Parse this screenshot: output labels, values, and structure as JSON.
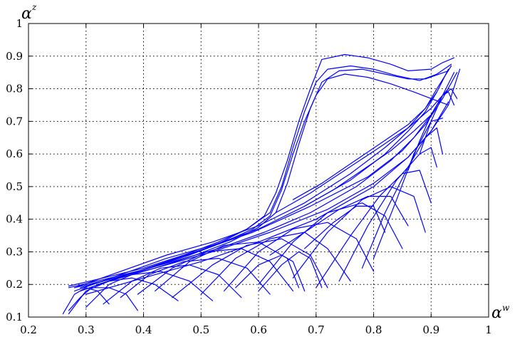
{
  "chart_data": {
    "type": "line",
    "title": "",
    "xlabel": {
      "symbol": "α",
      "superscript": "w"
    },
    "ylabel": {
      "symbol": "α",
      "superscript": "z"
    },
    "xlim": [
      0.2,
      1
    ],
    "ylim": [
      0.1,
      1
    ],
    "xticks": [
      "0.2",
      "0.3",
      "0.4",
      "0.5",
      "0.6",
      "0.7",
      "0.8",
      "0.9",
      "1"
    ],
    "yticks": [
      "0.1",
      "0.2",
      "0.3",
      "0.4",
      "0.5",
      "0.6",
      "0.7",
      "0.8",
      "0.9",
      "1"
    ],
    "grid": true,
    "color": "#0000ff",
    "series": [
      {
        "x": [
          0.27,
          0.33,
          0.4,
          0.47,
          0.53,
          0.58,
          0.61,
          0.63,
          0.65,
          0.67,
          0.69,
          0.71,
          0.75,
          0.79,
          0.83,
          0.86,
          0.9,
          0.92,
          0.94
        ],
        "y": [
          0.195,
          0.22,
          0.25,
          0.29,
          0.33,
          0.37,
          0.41,
          0.48,
          0.58,
          0.7,
          0.8,
          0.89,
          0.905,
          0.895,
          0.875,
          0.855,
          0.86,
          0.88,
          0.895
        ]
      },
      {
        "x": [
          0.27,
          0.33,
          0.4,
          0.47,
          0.53,
          0.58,
          0.62,
          0.64,
          0.66,
          0.68,
          0.7,
          0.72,
          0.76,
          0.8,
          0.84,
          0.88,
          0.91,
          0.935
        ],
        "y": [
          0.19,
          0.215,
          0.245,
          0.285,
          0.325,
          0.37,
          0.42,
          0.5,
          0.62,
          0.73,
          0.82,
          0.86,
          0.87,
          0.86,
          0.84,
          0.825,
          0.845,
          0.875
        ]
      },
      {
        "x": [
          0.28,
          0.34,
          0.41,
          0.48,
          0.54,
          0.59,
          0.62,
          0.64,
          0.66,
          0.68,
          0.7,
          0.72,
          0.75,
          0.79,
          0.83,
          0.87,
          0.9,
          0.93
        ],
        "y": [
          0.19,
          0.215,
          0.25,
          0.29,
          0.33,
          0.37,
          0.41,
          0.49,
          0.6,
          0.7,
          0.78,
          0.83,
          0.845,
          0.835,
          0.815,
          0.79,
          0.77,
          0.75
        ]
      },
      {
        "x": [
          0.29,
          0.35,
          0.42,
          0.49,
          0.55,
          0.6,
          0.63,
          0.65,
          0.67,
          0.69,
          0.71,
          0.74,
          0.78,
          0.82,
          0.86,
          0.89,
          0.93
        ],
        "y": [
          0.19,
          0.22,
          0.25,
          0.29,
          0.33,
          0.375,
          0.42,
          0.51,
          0.63,
          0.74,
          0.82,
          0.855,
          0.86,
          0.845,
          0.83,
          0.83,
          0.855
        ]
      },
      {
        "x": [
          0.28,
          0.36,
          0.44,
          0.52,
          0.6,
          0.68,
          0.76,
          0.82,
          0.86,
          0.89,
          0.91,
          0.93
        ],
        "y": [
          0.18,
          0.23,
          0.28,
          0.32,
          0.37,
          0.44,
          0.52,
          0.6,
          0.67,
          0.73,
          0.79,
          0.86
        ]
      },
      {
        "x": [
          0.28,
          0.36,
          0.44,
          0.52,
          0.6,
          0.68,
          0.76,
          0.82,
          0.86,
          0.89,
          0.91,
          0.935
        ],
        "y": [
          0.19,
          0.24,
          0.29,
          0.33,
          0.38,
          0.45,
          0.54,
          0.62,
          0.68,
          0.74,
          0.8,
          0.87
        ]
      },
      {
        "x": [
          0.29,
          0.37,
          0.45,
          0.53,
          0.61,
          0.69,
          0.77,
          0.83,
          0.87,
          0.9,
          0.92,
          0.94
        ],
        "y": [
          0.18,
          0.23,
          0.27,
          0.31,
          0.36,
          0.42,
          0.5,
          0.58,
          0.65,
          0.72,
          0.78,
          0.85
        ]
      },
      {
        "x": [
          0.3,
          0.4,
          0.5,
          0.6,
          0.7,
          0.8,
          0.86,
          0.9,
          0.93,
          0.95
        ],
        "y": [
          0.17,
          0.22,
          0.27,
          0.33,
          0.4,
          0.5,
          0.59,
          0.67,
          0.75,
          0.86
        ]
      },
      {
        "x": [
          0.29,
          0.39,
          0.49,
          0.59,
          0.69,
          0.79,
          0.85,
          0.89,
          0.92,
          0.945
        ],
        "y": [
          0.18,
          0.24,
          0.3,
          0.36,
          0.44,
          0.53,
          0.61,
          0.69,
          0.77,
          0.85
        ]
      },
      {
        "x": [
          0.32,
          0.42,
          0.52,
          0.62,
          0.72,
          0.8,
          0.86,
          0.9,
          0.93
        ],
        "y": [
          0.2,
          0.25,
          0.3,
          0.36,
          0.43,
          0.51,
          0.59,
          0.67,
          0.76
        ]
      },
      {
        "x": [
          0.66,
          0.71,
          0.76,
          0.81,
          0.86,
          0.89,
          0.91
        ],
        "y": [
          0.46,
          0.51,
          0.57,
          0.63,
          0.69,
          0.74,
          0.79
        ]
      },
      {
        "x": [
          0.68,
          0.73,
          0.78,
          0.83,
          0.87,
          0.9,
          0.92
        ],
        "y": [
          0.44,
          0.49,
          0.55,
          0.61,
          0.67,
          0.72,
          0.78
        ]
      },
      {
        "x": [
          0.63,
          0.69,
          0.75,
          0.81,
          0.86,
          0.9,
          0.93
        ],
        "y": [
          0.42,
          0.48,
          0.55,
          0.62,
          0.68,
          0.74,
          0.8
        ]
      },
      {
        "x": [
          0.27,
          0.3,
          0.34,
          0.38,
          0.42,
          0.46
        ],
        "y": [
          0.11,
          0.18,
          0.21,
          0.22,
          0.2,
          0.15
        ]
      },
      {
        "x": [
          0.3,
          0.34,
          0.38,
          0.43,
          0.48,
          0.52
        ],
        "y": [
          0.13,
          0.2,
          0.23,
          0.24,
          0.21,
          0.15
        ]
      },
      {
        "x": [
          0.33,
          0.38,
          0.43,
          0.48,
          0.53,
          0.57
        ],
        "y": [
          0.14,
          0.21,
          0.25,
          0.26,
          0.23,
          0.16
        ]
      },
      {
        "x": [
          0.36,
          0.41,
          0.47,
          0.53,
          0.58,
          0.62
        ],
        "y": [
          0.16,
          0.23,
          0.27,
          0.28,
          0.25,
          0.17
        ]
      },
      {
        "x": [
          0.39,
          0.45,
          0.51,
          0.57,
          0.62,
          0.66
        ],
        "y": [
          0.17,
          0.25,
          0.3,
          0.31,
          0.27,
          0.18
        ]
      },
      {
        "x": [
          0.42,
          0.48,
          0.54,
          0.6,
          0.65,
          0.67
        ],
        "y": [
          0.18,
          0.27,
          0.32,
          0.33,
          0.28,
          0.19
        ]
      },
      {
        "x": [
          0.45,
          0.52,
          0.58,
          0.64,
          0.69,
          0.72
        ],
        "y": [
          0.16,
          0.26,
          0.32,
          0.34,
          0.29,
          0.19
        ]
      },
      {
        "x": [
          0.5,
          0.56,
          0.62,
          0.68,
          0.72,
          0.76
        ],
        "y": [
          0.17,
          0.28,
          0.34,
          0.36,
          0.31,
          0.21
        ]
      },
      {
        "x": [
          0.54,
          0.6,
          0.66,
          0.72,
          0.77,
          0.8
        ],
        "y": [
          0.18,
          0.3,
          0.37,
          0.39,
          0.34,
          0.24
        ]
      },
      {
        "x": [
          0.6,
          0.66,
          0.72,
          0.78,
          0.82,
          0.85
        ],
        "y": [
          0.2,
          0.33,
          0.42,
          0.45,
          0.41,
          0.31
        ]
      },
      {
        "x": [
          0.66,
          0.72,
          0.78,
          0.83,
          0.87,
          0.89
        ],
        "y": [
          0.22,
          0.36,
          0.46,
          0.5,
          0.47,
          0.36
        ]
      },
      {
        "x": [
          0.7,
          0.76,
          0.81,
          0.85,
          0.88,
          0.9
        ],
        "y": [
          0.19,
          0.35,
          0.47,
          0.54,
          0.55,
          0.45
        ]
      },
      {
        "x": [
          0.74,
          0.79,
          0.84,
          0.88,
          0.9,
          0.91
        ],
        "y": [
          0.21,
          0.38,
          0.52,
          0.6,
          0.62,
          0.56
        ]
      },
      {
        "x": [
          0.78,
          0.82,
          0.86,
          0.89,
          0.91,
          0.92
        ],
        "y": [
          0.25,
          0.42,
          0.56,
          0.65,
          0.68,
          0.6
        ]
      },
      {
        "x": [
          0.8,
          0.84,
          0.87,
          0.9,
          0.92
        ],
        "y": [
          0.28,
          0.46,
          0.6,
          0.7,
          0.71
        ]
      },
      {
        "x": [
          0.86,
          0.88,
          0.9,
          0.92,
          0.93,
          0.94
        ],
        "y": [
          0.55,
          0.64,
          0.72,
          0.78,
          0.79,
          0.75
        ]
      },
      {
        "x": [
          0.88,
          0.9,
          0.92,
          0.935,
          0.945
        ],
        "y": [
          0.6,
          0.7,
          0.78,
          0.8,
          0.77
        ]
      },
      {
        "x": [
          0.26,
          0.28,
          0.3,
          0.32,
          0.34
        ],
        "y": [
          0.11,
          0.17,
          0.19,
          0.18,
          0.14
        ]
      },
      {
        "x": [
          0.27,
          0.29,
          0.31,
          0.34,
          0.37,
          0.39
        ],
        "y": [
          0.12,
          0.16,
          0.19,
          0.19,
          0.17,
          0.12
        ]
      },
      {
        "x": [
          0.56,
          0.6,
          0.64,
          0.66,
          0.68
        ],
        "y": [
          0.19,
          0.26,
          0.29,
          0.27,
          0.18
        ]
      },
      {
        "x": [
          0.6,
          0.64,
          0.67,
          0.69,
          0.71
        ],
        "y": [
          0.18,
          0.26,
          0.3,
          0.28,
          0.19
        ]
      },
      {
        "x": [
          0.68,
          0.73,
          0.77,
          0.8,
          0.82
        ],
        "y": [
          0.31,
          0.39,
          0.44,
          0.44,
          0.36
        ]
      },
      {
        "x": [
          0.62,
          0.68,
          0.74,
          0.79,
          0.83,
          0.86
        ],
        "y": [
          0.29,
          0.36,
          0.43,
          0.47,
          0.47,
          0.38
        ]
      }
    ]
  }
}
